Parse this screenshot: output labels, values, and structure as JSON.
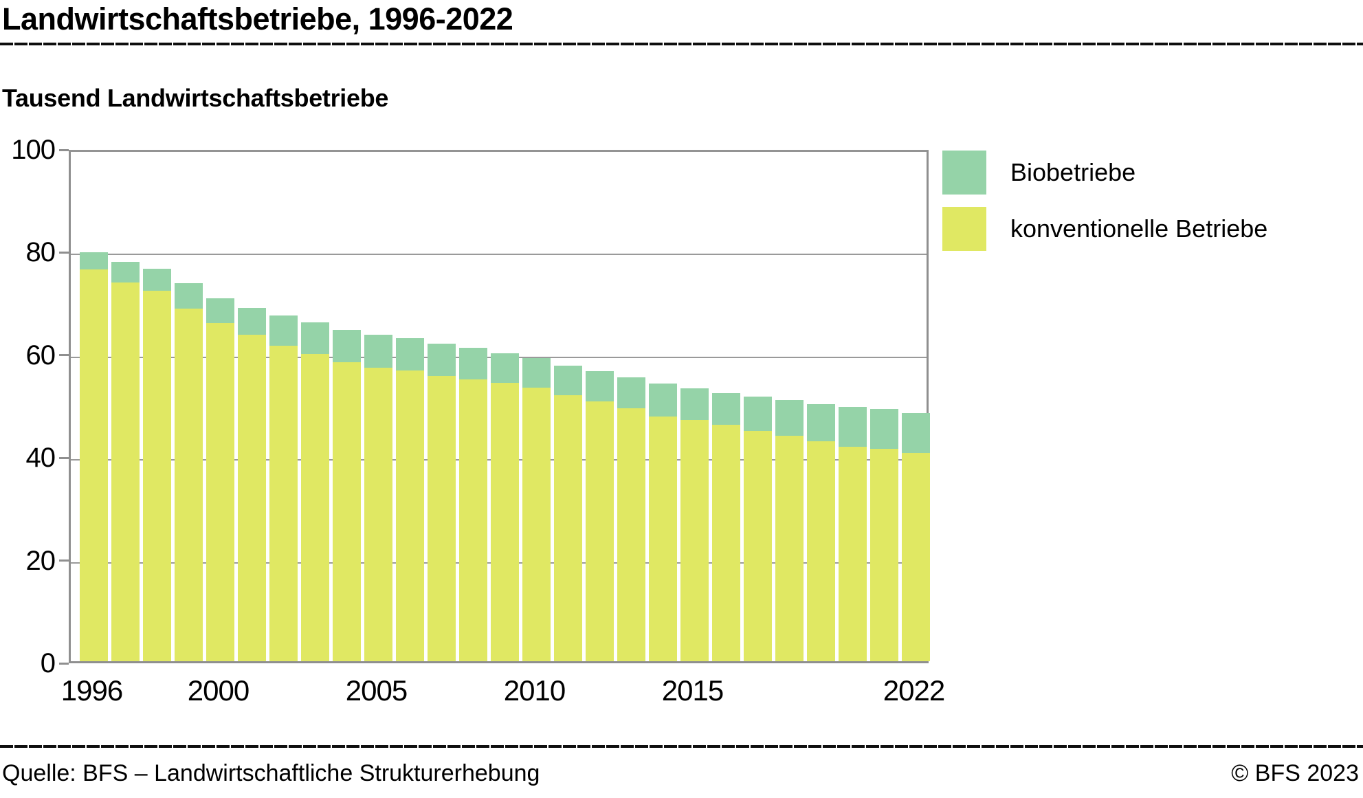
{
  "header": {
    "title": "Landwirtschaftsbetriebe, 1996-2022",
    "subtitle": "Tausend Landwirtschaftsbetriebe"
  },
  "legend": {
    "items": [
      {
        "label": "Biobetriebe",
        "color": "#95d3a8"
      },
      {
        "label": "konventionelle Betriebe",
        "color": "#e0e863"
      }
    ]
  },
  "footer": {
    "source": "Quelle: BFS – Landwirtschaftliche Strukturerhebung",
    "copyright": "© BFS 2023"
  },
  "chart_data": {
    "type": "bar",
    "stacked": true,
    "title": "Landwirtschaftsbetriebe, 1996-2022",
    "ylabel": "Tausend Landwirtschaftsbetriebe",
    "xlabel": "",
    "ylim": [
      0,
      100
    ],
    "yticks": [
      0,
      20,
      40,
      60,
      80,
      100
    ],
    "grid": true,
    "legend_position": "top-right",
    "categories": [
      1996,
      1997,
      1998,
      1999,
      2000,
      2001,
      2002,
      2003,
      2004,
      2005,
      2006,
      2007,
      2008,
      2009,
      2010,
      2011,
      2012,
      2013,
      2014,
      2015,
      2016,
      2017,
      2018,
      2019,
      2020,
      2021,
      2022
    ],
    "xtick_labels": [
      {
        "label": "1996",
        "index": 0
      },
      {
        "label": "2000",
        "index": 4
      },
      {
        "label": "2005",
        "index": 9
      },
      {
        "label": "2010",
        "index": 14
      },
      {
        "label": "2015",
        "index": 19
      },
      {
        "label": "2022",
        "index": 26
      }
    ],
    "series": [
      {
        "name": "konventionelle Betriebe",
        "color": "#e0e863",
        "values": [
          76.3,
          73.8,
          72.1,
          68.7,
          65.8,
          63.6,
          61.5,
          59.9,
          58.2,
          57.2,
          56.6,
          55.6,
          54.9,
          54.2,
          53.3,
          51.8,
          50.6,
          49.2,
          47.6,
          47.0,
          46.0,
          44.9,
          43.9,
          42.8,
          41.8,
          41.3,
          40.6
        ]
      },
      {
        "name": "Biobetriebe",
        "color": "#95d3a8",
        "values": [
          3.3,
          4.0,
          4.3,
          4.9,
          4.8,
          5.2,
          5.9,
          6.1,
          6.3,
          6.4,
          6.3,
          6.3,
          6.1,
          5.8,
          5.8,
          5.7,
          5.9,
          6.0,
          6.4,
          6.2,
          6.2,
          6.7,
          7.0,
          7.2,
          7.7,
          7.7,
          7.7
        ]
      }
    ]
  }
}
